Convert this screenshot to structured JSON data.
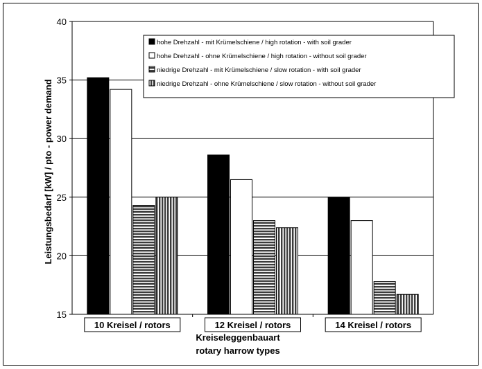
{
  "chart_data": {
    "type": "bar",
    "categories": [
      "10 Kreisel / rotors",
      "12 Kreisel / rotors",
      "14 Kreisel / rotors"
    ],
    "series": [
      {
        "name": "hohe Drehzahl - mit Krümelschiene / high rotation - with soil grader",
        "values": [
          35.2,
          28.6,
          25.0
        ],
        "fill": "#000000",
        "pattern": "solid"
      },
      {
        "name": "hohe Drehzahl - ohne Krümelschiene / high rotation - without soil grader",
        "values": [
          34.2,
          26.5,
          23.0
        ],
        "fill": "#ffffff",
        "pattern": "solid"
      },
      {
        "name": "niedrige Drehzahl - mit Krümelschiene / slow rotation - with soil grader",
        "values": [
          24.3,
          23.0,
          17.8
        ],
        "fill": "#5a5a5a",
        "pattern": "horizontal"
      },
      {
        "name": "niedrige Drehzahl - ohne Krümelschiene / slow rotation - without soil grader",
        "values": [
          25.0,
          22.4,
          16.7
        ],
        "fill": "#5a5a5a",
        "pattern": "vertical"
      }
    ],
    "yticks": [
      "15",
      "20",
      "25",
      "30",
      "35",
      "40"
    ],
    "ylim": [
      15,
      40
    ],
    "ylabel": "Leistungsbedarf [kW] / pto - power demand",
    "xlabel_line1": "Kreiseleggenbauart",
    "xlabel_line2": "rotary harrow types",
    "grid": true,
    "legend_position": "top-right"
  }
}
